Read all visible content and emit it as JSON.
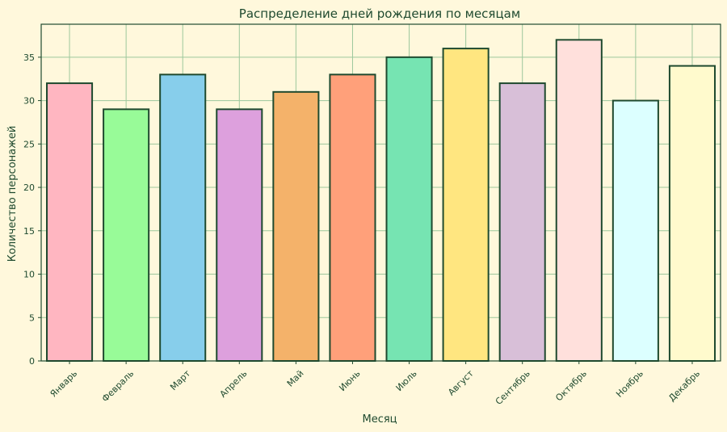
{
  "chart_data": {
    "type": "bar",
    "title": "Распределение дней рождения по месяцам",
    "xlabel": "Месяц",
    "ylabel": "Количество персонажей",
    "categories": [
      "Январь",
      "Февраль",
      "Март",
      "Апрель",
      "Май",
      "Июнь",
      "Июль",
      "Август",
      "Сентябрь",
      "Октябрь",
      "Ноябрь",
      "Декабрь"
    ],
    "values": [
      32,
      29,
      33,
      29,
      31,
      33,
      35,
      36,
      32,
      37,
      30,
      34
    ],
    "colors": [
      "#ffb6c1",
      "#98fb98",
      "#87ceeb",
      "#dda0dd",
      "#f4b26a",
      "#ffa07a",
      "#76e4b2",
      "#ffe680",
      "#d8bfd8",
      "#ffe0dc",
      "#dcffff",
      "#fffacd"
    ],
    "edge_color": "#1f4a2f",
    "background": "#fff8dc",
    "grid": true,
    "grid_color": "#9cc79c",
    "ylim": [
      0,
      38.8
    ],
    "yticks": [
      0,
      5,
      10,
      15,
      20,
      25,
      30,
      35
    ]
  }
}
